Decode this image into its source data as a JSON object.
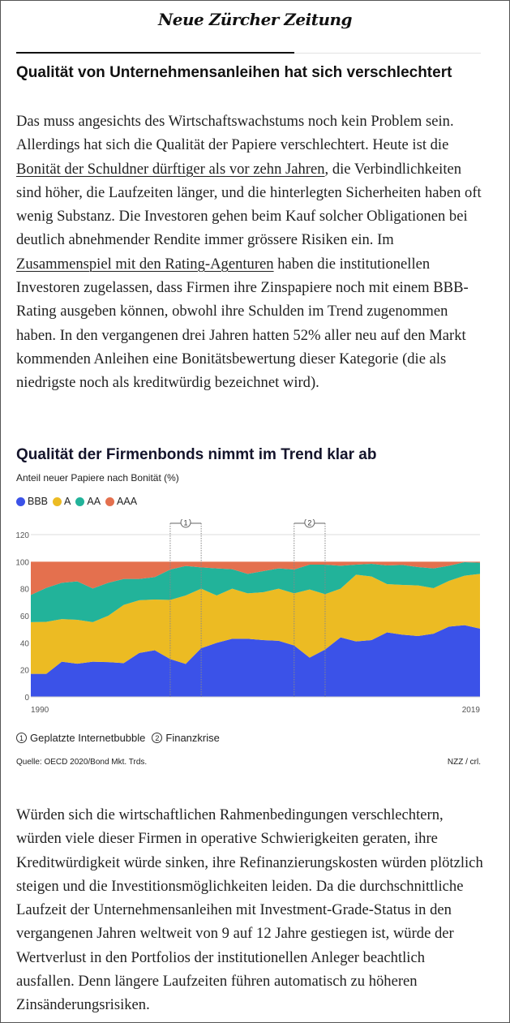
{
  "header": {
    "logo": "Neue Zürcher Zeitung"
  },
  "article": {
    "heading": "Qualität von Unternehmensanleihen hat sich verschlechtert",
    "paragraph1": {
      "t1": "Das muss angesichts des Wirtschaftswachstums noch kein Problem sein. Allerdings hat sich die Qualität der Papiere verschlechtert. Heute ist die ",
      "link1": "Bonität der Schuldner dürftiger als vor zehn Jahren",
      "t2": ", die Verbindlichkeiten sind höher, die Laufzeiten länger, und die hinterlegten Sicherheiten haben oft wenig Substanz. Die Investoren gehen beim Kauf solcher Obligationen bei deutlich abnehmender Rendite immer grössere Risiken ein. Im ",
      "link2": "Zusammenspiel mit den Rating-Agenturen",
      "t3": " haben die institutionellen Investoren zugelassen, dass Firmen ihre Zinspapiere noch mit einem BBB-Rating ausgeben können, obwohl ihre Schulden im Trend zugenommen haben. In den vergangenen drei Jahren hatten 52% aller neu auf den Markt kommenden Anleihen eine Bonitätsbewertung dieser Kategorie (die als niedrigste noch als kreditwürdig bezeichnet wird)."
    },
    "paragraph2": "Würden sich die wirtschaftlichen Rahmenbedingungen verschlechtern, würden viele dieser Firmen in operative Schwierigkeiten geraten, ihre Kreditwürdigkeit würde sinken, ihre Refinanzierungskosten würden plötzlich steigen und die Investitionsmöglichkeiten leiden. Da die durchschnittliche Laufzeit der Unternehmensanleihen mit Investment-Grade-Status in den vergangenen Jahren weltweit von 9 auf 12 Jahre gestiegen ist, würde der Wertverlust in den Portfolios der institutionellen Anleger beachtlich ausfallen. Denn längere Laufzeiten führen automatisch zu höheren Zinsänderungsrisiken."
  },
  "chart_data": {
    "type": "area",
    "stacked": true,
    "title": "Qualität der Firmenbonds nimmt im Trend klar ab",
    "subtitle": "Anteil neuer Papiere nach Bonität (%)",
    "ylim": [
      0,
      120
    ],
    "yticks": [
      "0",
      "20",
      "40",
      "60",
      "80",
      "100",
      "120"
    ],
    "xlim": [
      1990,
      2019
    ],
    "xtick_labels": [
      "1990",
      "2019"
    ],
    "grid": true,
    "legend_position": "top-left",
    "x": [
      1990,
      1991,
      1992,
      1993,
      1994,
      1995,
      1996,
      1997,
      1998,
      1999,
      2000,
      2001,
      2002,
      2003,
      2004,
      2005,
      2006,
      2007,
      2008,
      2009,
      2010,
      2011,
      2012,
      2013,
      2014,
      2015,
      2016,
      2017,
      2018,
      2019
    ],
    "series": [
      {
        "name": "BBB",
        "color": "#3b52e8",
        "values": [
          17,
          17,
          26,
          24.5,
          26,
          25.7,
          25,
          32.5,
          34.5,
          28,
          24.4,
          36,
          40,
          43,
          43,
          42,
          41.5,
          38,
          29,
          35,
          44,
          41,
          42,
          47.7,
          46,
          45,
          46.7,
          52,
          53,
          50.5
        ]
      },
      {
        "name": "A",
        "color": "#ecbb23",
        "values": [
          38.3,
          38.5,
          31.5,
          32.5,
          29.3,
          34.3,
          43,
          39,
          37.5,
          43.7,
          50.6,
          44,
          35,
          37,
          33.6,
          35.4,
          38.5,
          38.6,
          50.4,
          41,
          36,
          49.4,
          47,
          35.7,
          36.8,
          37.4,
          33.7,
          33.8,
          36.6,
          40.5
        ]
      },
      {
        "name": "AA",
        "color": "#22b39a",
        "values": [
          20.1,
          25.1,
          26.9,
          28.4,
          24.9,
          24.4,
          19.2,
          15.7,
          16.6,
          22.5,
          21.8,
          15.8,
          20,
          14.4,
          14.4,
          15.6,
          15,
          17.6,
          18.4,
          21.8,
          17,
          7.4,
          9.4,
          13.8,
          14.8,
          13.6,
          14.6,
          11.2,
          10,
          8.2
        ]
      },
      {
        "name": "AAA",
        "color": "#e4704e",
        "values": [
          24.6,
          19.4,
          15.6,
          14.6,
          19.8,
          15.6,
          12.8,
          12.8,
          11.4,
          5.8,
          3.2,
          4.2,
          5,
          5.6,
          9,
          7,
          5,
          5.8,
          2.2,
          2.2,
          3,
          2.2,
          1.6,
          2.8,
          2.4,
          4,
          5,
          3,
          0.4,
          0.8
        ]
      }
    ],
    "annotations": [
      {
        "number": "1",
        "label": "Geplatzte Internetbubble",
        "from": 1999,
        "to": 2001
      },
      {
        "number": "2",
        "label": "Finanzkrise",
        "from": 2007,
        "to": 2009
      }
    ],
    "source": "Quelle: OECD 2020/Bond Mkt. Trds.",
    "credit": "NZZ / crl."
  }
}
